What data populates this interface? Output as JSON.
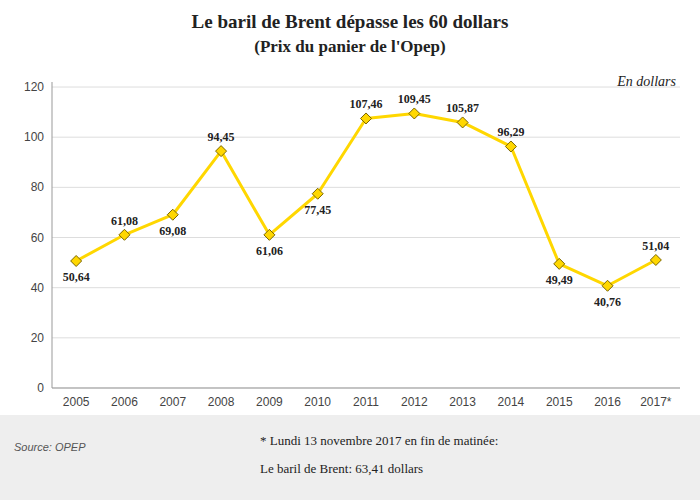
{
  "chart_data": {
    "type": "line",
    "title": "Le baril de Brent dépasse les 60 dollars",
    "subtitle": "(Prix du panier de l'Opep)",
    "categories": [
      "2005",
      "2006",
      "2007",
      "2008",
      "2009",
      "2010",
      "2011",
      "2012",
      "2013",
      "2014",
      "2015",
      "2016",
      "2017*"
    ],
    "values": [
      50.64,
      61.08,
      69.08,
      94.45,
      61.06,
      77.45,
      107.46,
      109.45,
      105.87,
      96.29,
      49.49,
      40.76,
      51.04
    ],
    "value_labels": [
      "50,64",
      "61,08",
      "69,08",
      "94,45",
      "61,06",
      "77,45",
      "107,46",
      "109,45",
      "105,87",
      "96,29",
      "49,49",
      "40,76",
      "51,04"
    ],
    "data_labels": true,
    "color": "#FFD700",
    "marker": "diamond",
    "ylim": [
      0,
      122
    ],
    "yticks": [
      0,
      20,
      40,
      60,
      80,
      100,
      120
    ],
    "grid": true,
    "annotations": [
      "En dollars",
      "Source: OPEP",
      "* Lundi 13 novembre 2017 en fin de matinée:",
      "Le baril de Brent: 63,41 dollars"
    ]
  }
}
